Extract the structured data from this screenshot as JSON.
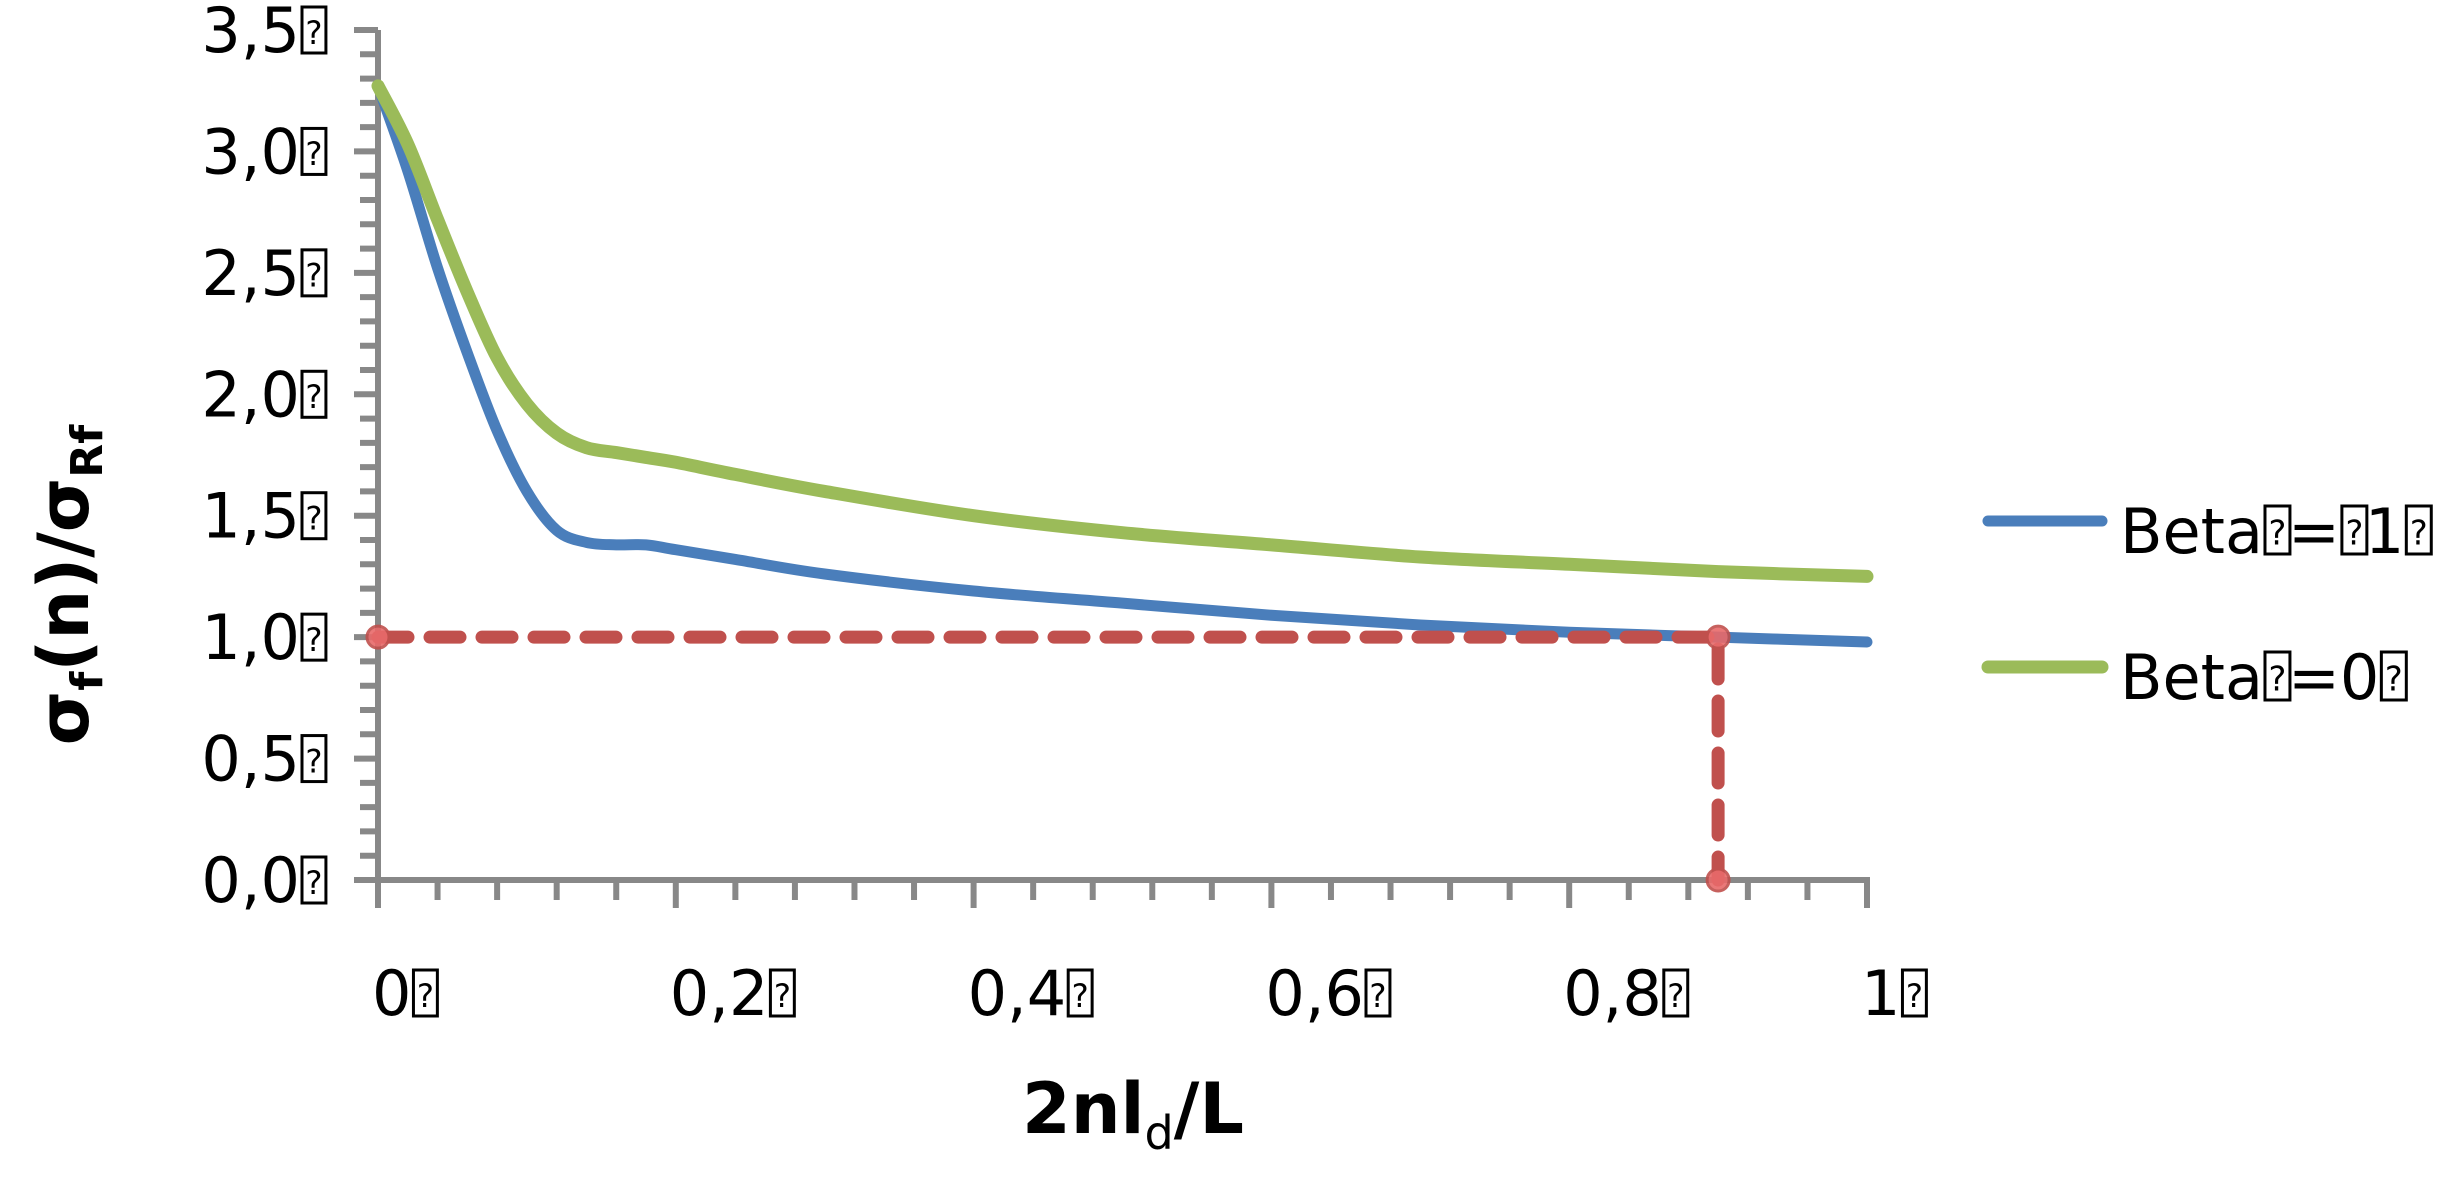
{
  "chart_data": {
    "type": "line",
    "title": "",
    "xlabel": "2nl_d/L",
    "ylabel": "σ_f(n)/σ_Rf",
    "xlabel_parts": {
      "main": "2nl",
      "sub": "d",
      "tail": "/L"
    },
    "ylabel_parts": {
      "a": "σ",
      "a_sub": "f",
      "mid": "(n)/σ",
      "b_sub": "Rf"
    },
    "xlim": [
      0,
      1
    ],
    "ylim": [
      0,
      3.5
    ],
    "grid": false,
    "legend_position": "right",
    "x_ticks": [
      {
        "value": 0,
        "label": "0"
      },
      {
        "value": 0.2,
        "label": "0,2"
      },
      {
        "value": 0.4,
        "label": "0,4"
      },
      {
        "value": 0.6,
        "label": "0,6"
      },
      {
        "value": 0.8,
        "label": "0,8"
      },
      {
        "value": 1,
        "label": "1"
      }
    ],
    "x_minor_step": 0.04,
    "y_ticks": [
      {
        "value": 0,
        "label": "0,0"
      },
      {
        "value": 0.5,
        "label": "0,5"
      },
      {
        "value": 1.0,
        "label": "1,0"
      },
      {
        "value": 1.5,
        "label": "1,5"
      },
      {
        "value": 2.0,
        "label": "2,0"
      },
      {
        "value": 2.5,
        "label": "2,5"
      },
      {
        "value": 3.0,
        "label": "3,0"
      },
      {
        "value": 3.5,
        "label": "3,5"
      }
    ],
    "y_minor_step": 0.1,
    "x": [
      0,
      0.02,
      0.04,
      0.06,
      0.08,
      0.1,
      0.12,
      0.14,
      0.16,
      0.18,
      0.2,
      0.24,
      0.3,
      0.4,
      0.5,
      0.6,
      0.7,
      0.8,
      0.9,
      1.0
    ],
    "series": [
      {
        "name": "Beta = 1",
        "legend_parts": [
          "Beta",
          "=",
          "1"
        ],
        "color": "#4A7EBB",
        "values": [
          3.27,
          2.92,
          2.52,
          2.17,
          1.85,
          1.6,
          1.44,
          1.39,
          1.38,
          1.38,
          1.36,
          1.32,
          1.26,
          1.19,
          1.14,
          1.09,
          1.05,
          1.02,
          1.0,
          0.98
        ]
      },
      {
        "name": "Beta = 0",
        "legend_parts": [
          "Beta",
          "=0"
        ],
        "color": "#9BBB59",
        "values": [
          3.27,
          3.03,
          2.72,
          2.42,
          2.15,
          1.96,
          1.84,
          1.78,
          1.76,
          1.74,
          1.72,
          1.67,
          1.6,
          1.5,
          1.43,
          1.38,
          1.33,
          1.3,
          1.27,
          1.25
        ]
      }
    ],
    "annotations": [
      {
        "type": "dashed-guide",
        "color": "#C0504D",
        "points": [
          [
            0,
            1.0
          ],
          [
            0.9,
            1.0
          ],
          [
            0.9,
            0.0
          ]
        ],
        "markers": [
          [
            0,
            1.0
          ],
          [
            0.9,
            1.0
          ],
          [
            0.9,
            0.0
          ]
        ]
      }
    ]
  },
  "colors": {
    "axis": "#888888",
    "text": "#000000",
    "annotation": "#C0504D"
  }
}
